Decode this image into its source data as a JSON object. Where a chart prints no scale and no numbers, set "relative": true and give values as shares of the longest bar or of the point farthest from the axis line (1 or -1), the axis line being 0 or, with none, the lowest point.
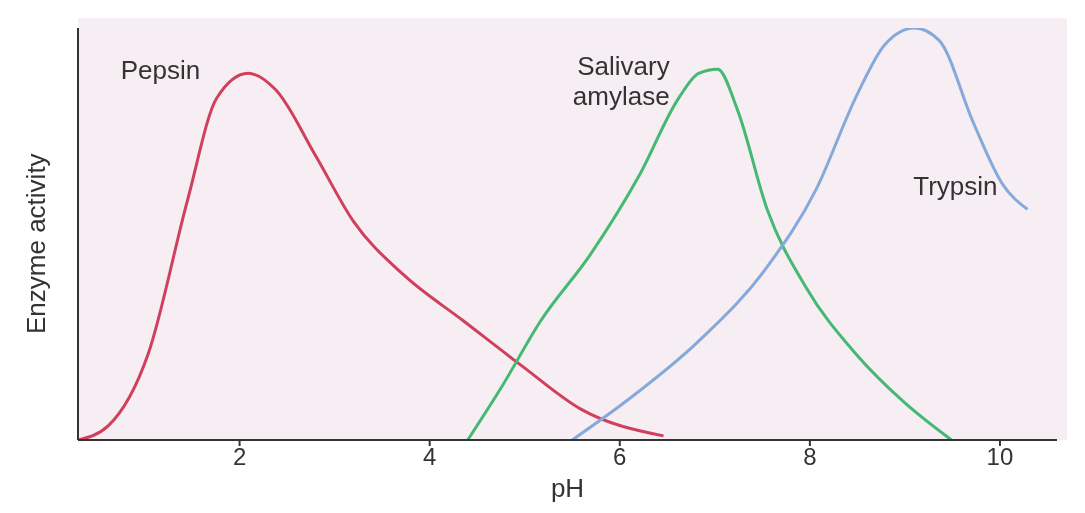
{
  "chart_data": {
    "type": "line",
    "xlabel": "pH",
    "ylabel": "Enzyme activity",
    "relative": true,
    "xlim": [
      0.3,
      10.6
    ],
    "xticks": [
      2,
      4,
      6,
      8,
      10
    ],
    "marker": "none",
    "line_style": "solid",
    "series": [
      {
        "name": "Pepsin",
        "color": "#d0405e",
        "x": [
          0.3,
          0.62,
          1.04,
          1.45,
          1.76,
          2.09,
          2.38,
          2.8,
          3.2,
          3.73,
          4.35,
          4.97,
          5.59,
          6.46
        ],
        "values": [
          0,
          0.035,
          0.21,
          0.58,
          0.83,
          0.89,
          0.85,
          0.69,
          0.53,
          0.4,
          0.29,
          0.18,
          0.075,
          0.01
        ]
      },
      {
        "name": "Salivary amylase",
        "color": "#45b873",
        "x": [
          4.4,
          4.76,
          5.17,
          5.69,
          6.2,
          6.62,
          6.83,
          7.03,
          7.24,
          7.55,
          7.96,
          8.48,
          9.0,
          9.49
        ],
        "values": [
          0,
          0.13,
          0.29,
          0.45,
          0.64,
          0.83,
          0.89,
          0.9,
          0.8,
          0.56,
          0.37,
          0.21,
          0.09,
          0
        ]
      },
      {
        "name": "Trypsin",
        "color": "#86a9db",
        "x": [
          5.5,
          6.1,
          6.83,
          7.55,
          8.07,
          8.48,
          8.79,
          9.1,
          9.36,
          9.72,
          10.03,
          10.29
        ],
        "values": [
          0,
          0.1,
          0.24,
          0.42,
          0.61,
          0.83,
          0.96,
          1.0,
          0.97,
          0.77,
          0.62,
          0.56
        ]
      }
    ]
  }
}
